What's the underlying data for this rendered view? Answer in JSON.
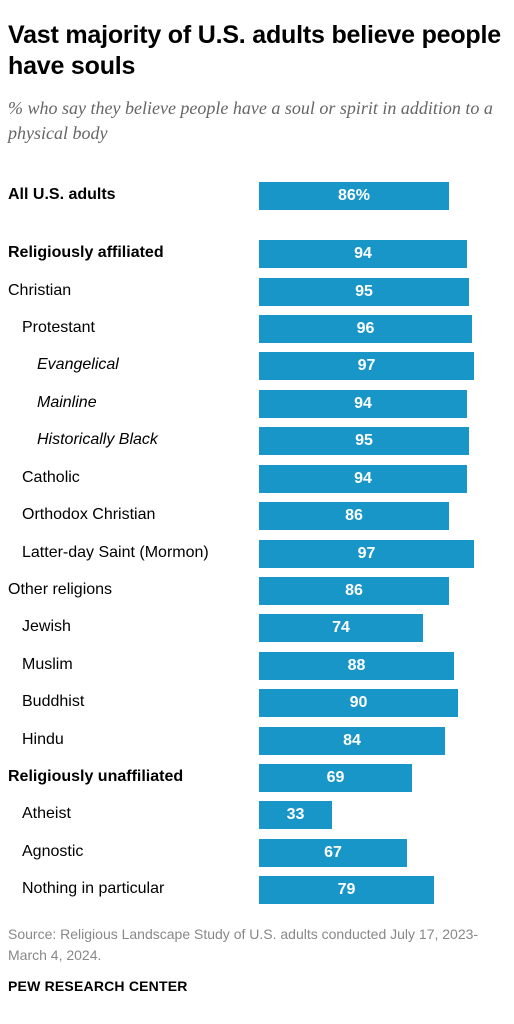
{
  "title": "Vast majority of U.S. adults believe people have souls",
  "subtitle": "% who say they believe people have a soul or spirit in addition to a physical body",
  "source": "Source: Religious Landscape Study of U.S. adults conducted July 17, 2023-March 4, 2024.",
  "brand": "PEW RESEARCH CENTER",
  "colors": {
    "bar": "#1996c8",
    "value_text": "#ffffff"
  },
  "chart_data": {
    "type": "bar",
    "orientation": "horizontal",
    "unit": "%",
    "xlim": [
      0,
      100
    ],
    "categories": [
      "All U.S. adults",
      "Religiously affiliated",
      "Christian",
      "Protestant",
      "Evangelical",
      "Mainline",
      "Historically Black",
      "Catholic",
      "Orthodox Christian",
      "Latter-day Saint (Mormon)",
      "Other religions",
      "Jewish",
      "Muslim",
      "Buddhist",
      "Hindu",
      "Religiously unaffiliated",
      "Atheist",
      "Agnostic",
      "Nothing in particular"
    ],
    "values": [
      86,
      94,
      95,
      96,
      97,
      94,
      95,
      94,
      86,
      97,
      86,
      74,
      88,
      90,
      84,
      69,
      33,
      67,
      79
    ],
    "value_labels": [
      "86%",
      "94",
      "95",
      "96",
      "97",
      "94",
      "95",
      "94",
      "86",
      "97",
      "86",
      "74",
      "88",
      "90",
      "84",
      "69",
      "33",
      "67",
      "79"
    ],
    "label_styles": [
      "bold",
      "bold",
      "normal",
      "normal",
      "italic",
      "italic",
      "italic",
      "normal",
      "normal",
      "normal",
      "normal",
      "normal",
      "normal",
      "normal",
      "normal",
      "bold",
      "normal",
      "normal",
      "normal"
    ],
    "indent_levels": [
      0,
      0,
      0,
      1,
      2,
      2,
      2,
      1,
      1,
      1,
      0,
      1,
      1,
      1,
      1,
      0,
      1,
      1,
      1
    ]
  }
}
